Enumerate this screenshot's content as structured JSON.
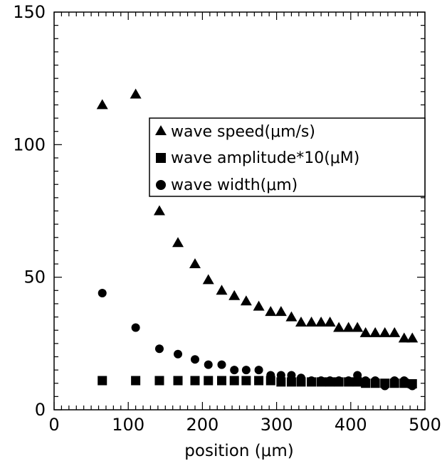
{
  "chart_data": {
    "type": "scatter",
    "title": "",
    "xlabel": "position (μm)",
    "ylabel": "",
    "xlim": [
      0,
      500
    ],
    "ylim": [
      0,
      150
    ],
    "x_ticks": [
      0,
      100,
      200,
      300,
      400,
      500
    ],
    "y_ticks": [
      0,
      50,
      100,
      150
    ],
    "grid": false,
    "legend_position": "upper-right",
    "series": [
      {
        "name": "wave speed(μm/s)",
        "marker": "triangle",
        "color": "#000000",
        "x": [
          65,
          110,
          142,
          167,
          190,
          208,
          226,
          243,
          259,
          276,
          292,
          306,
          320,
          333,
          347,
          360,
          372,
          384,
          397,
          409,
          420,
          433,
          446,
          459,
          472,
          483
        ],
        "y": [
          115,
          119,
          75,
          63,
          55,
          49,
          45,
          43,
          41,
          39,
          37,
          37,
          35,
          33,
          33,
          33,
          33,
          31,
          31,
          31,
          29,
          29,
          29,
          29,
          27,
          27
        ]
      },
      {
        "name": "wave amplitude*10(μM)",
        "marker": "square",
        "color": "#000000",
        "x": [
          65,
          110,
          142,
          167,
          190,
          208,
          226,
          243,
          259,
          276,
          292,
          306,
          320,
          333,
          347,
          360,
          372,
          384,
          397,
          409,
          420,
          433,
          446,
          459,
          472,
          483
        ],
        "y": [
          11,
          11,
          11,
          11,
          11,
          11,
          11,
          11,
          11,
          11,
          11,
          10.5,
          10.5,
          10.5,
          10.5,
          10.5,
          10.5,
          10.5,
          10.5,
          10.5,
          10,
          10,
          10,
          10,
          10,
          9.8
        ]
      },
      {
        "name": "wave width(μm)",
        "marker": "circle",
        "color": "#000000",
        "x": [
          65,
          110,
          142,
          167,
          190,
          208,
          226,
          243,
          259,
          276,
          292,
          306,
          320,
          333,
          347,
          360,
          372,
          384,
          397,
          409,
          420,
          433,
          446,
          459,
          472,
          483
        ],
        "y": [
          44,
          31,
          23,
          21,
          19,
          17,
          17,
          15,
          15,
          15,
          13,
          13,
          13,
          12,
          11,
          11,
          11,
          11,
          11,
          13,
          11,
          11,
          9,
          11,
          11,
          9
        ]
      }
    ]
  }
}
